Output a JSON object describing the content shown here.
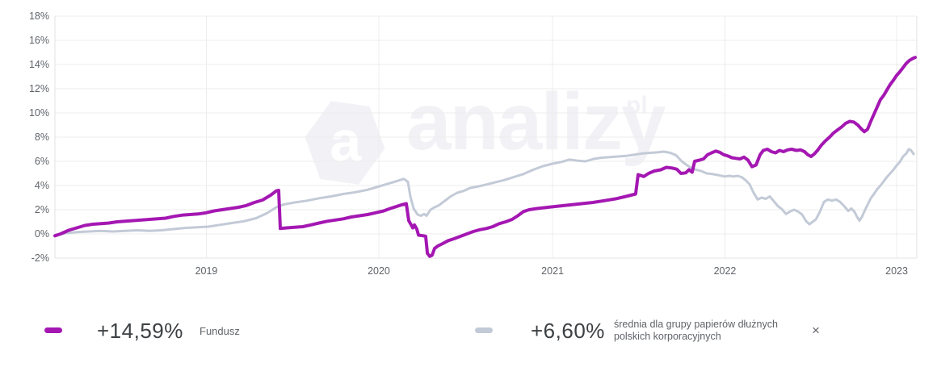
{
  "colors": {
    "fund": "#a417b2",
    "benchmark": "#c3cad7",
    "grid": "#ececec",
    "border": "#e3e3e6",
    "axis_text": "#5f6368",
    "value_text": "#3c4043",
    "watermark": "#f2f2f6"
  },
  "watermark": {
    "logo_letter": "a",
    "text": "analizy",
    "suffix": "pl"
  },
  "legend": {
    "fund": {
      "value": "+14,59%",
      "label": "Fundusz"
    },
    "benchmark": {
      "value": "+6,60%",
      "label": "średnia dla grupy papierów dłużnych polskich korporacyjnych"
    },
    "close_label": "×"
  },
  "chart_data": {
    "type": "line",
    "title": "",
    "x_axis": {
      "tick_labels": [
        "2019",
        "2020",
        "2021",
        "2022",
        "2023"
      ],
      "tick_positions": [
        0.1757,
        0.3758,
        0.5774,
        0.7774,
        0.9766
      ],
      "range_note": "time axis from ~Feb 2018 to ~Feb 2023, x stored as 0-1 fraction of plot width"
    },
    "y_axis": {
      "tick_labels": [
        "18%",
        "16%",
        "14%",
        "12%",
        "10%",
        "8%",
        "6%",
        "4%",
        "2%",
        "0%",
        "-2%"
      ],
      "tick_values": [
        18,
        16,
        14,
        12,
        10,
        8,
        6,
        4,
        2,
        0,
        -2
      ],
      "ylim": [
        -2,
        18
      ],
      "unit": "%"
    },
    "grid": true,
    "legend_position": "bottom",
    "series": [
      {
        "name": "średnia dla grupy papierów dłużnych polskich korporacyjnych",
        "color_key": "benchmark",
        "stroke_width": 3,
        "final_pct": 6.6,
        "points": [
          [
            0,
            -0.1
          ],
          [
            0.0112,
            0.05
          ],
          [
            0.0253,
            0.15
          ],
          [
            0.0394,
            0.2
          ],
          [
            0.0534,
            0.25
          ],
          [
            0.0675,
            0.2
          ],
          [
            0.0815,
            0.25
          ],
          [
            0.0956,
            0.3
          ],
          [
            0.1097,
            0.25
          ],
          [
            0.1237,
            0.3
          ],
          [
            0.1378,
            0.4
          ],
          [
            0.1518,
            0.5
          ],
          [
            0.1659,
            0.55
          ],
          [
            0.1781,
            0.6
          ],
          [
            0.1912,
            0.75
          ],
          [
            0.2053,
            0.9
          ],
          [
            0.2193,
            1.05
          ],
          [
            0.2334,
            1.3
          ],
          [
            0.2456,
            1.7
          ],
          [
            0.2568,
            2.2
          ],
          [
            0.2662,
            2.45
          ],
          [
            0.2783,
            2.6
          ],
          [
            0.2924,
            2.75
          ],
          [
            0.3065,
            2.95
          ],
          [
            0.3205,
            3.1
          ],
          [
            0.3346,
            3.3
          ],
          [
            0.3486,
            3.45
          ],
          [
            0.3627,
            3.65
          ],
          [
            0.3749,
            3.9
          ],
          [
            0.3842,
            4.1
          ],
          [
            0.3936,
            4.3
          ],
          [
            0.4002,
            4.45
          ],
          [
            0.4049,
            4.55
          ],
          [
            0.4096,
            4.3
          ],
          [
            0.4124,
            3.1
          ],
          [
            0.4161,
            2.1
          ],
          [
            0.4208,
            1.6
          ],
          [
            0.4246,
            1.5
          ],
          [
            0.4283,
            1.65
          ],
          [
            0.4311,
            1.5
          ],
          [
            0.4358,
            2
          ],
          [
            0.4405,
            2.2
          ],
          [
            0.4452,
            2.35
          ],
          [
            0.4517,
            2.7
          ],
          [
            0.4592,
            3.1
          ],
          [
            0.4667,
            3.4
          ],
          [
            0.4742,
            3.55
          ],
          [
            0.4817,
            3.8
          ],
          [
            0.4892,
            3.9
          ],
          [
            0.4986,
            4.05
          ],
          [
            0.5098,
            4.25
          ],
          [
            0.5211,
            4.45
          ],
          [
            0.5323,
            4.7
          ],
          [
            0.5436,
            4.95
          ],
          [
            0.5548,
            5.3
          ],
          [
            0.5661,
            5.6
          ],
          [
            0.5773,
            5.8
          ],
          [
            0.5876,
            5.95
          ],
          [
            0.597,
            6.15
          ],
          [
            0.6064,
            6.05
          ],
          [
            0.6157,
            6
          ],
          [
            0.6251,
            6.2
          ],
          [
            0.6345,
            6.3
          ],
          [
            0.6439,
            6.35
          ],
          [
            0.6532,
            6.4
          ],
          [
            0.6626,
            6.45
          ],
          [
            0.672,
            6.55
          ],
          [
            0.6813,
            6.65
          ],
          [
            0.6907,
            6.7
          ],
          [
            0.7001,
            6.75
          ],
          [
            0.7066,
            6.8
          ],
          [
            0.7141,
            6.7
          ],
          [
            0.7207,
            6.5
          ],
          [
            0.7273,
            6
          ],
          [
            0.7329,
            5.7
          ],
          [
            0.7385,
            5.45
          ],
          [
            0.7441,
            5.3
          ],
          [
            0.7498,
            5.2
          ],
          [
            0.7563,
            5
          ],
          [
            0.7629,
            4.95
          ],
          [
            0.7704,
            4.85
          ],
          [
            0.777,
            4.75
          ],
          [
            0.7826,
            4.8
          ],
          [
            0.7873,
            4.75
          ],
          [
            0.7919,
            4.8
          ],
          [
            0.7966,
            4.7
          ],
          [
            0.8013,
            4.45
          ],
          [
            0.806,
            4.1
          ],
          [
            0.8107,
            3.4
          ],
          [
            0.8154,
            2.85
          ],
          [
            0.82,
            3
          ],
          [
            0.8247,
            2.9
          ],
          [
            0.8294,
            3.1
          ],
          [
            0.8341,
            2.7
          ],
          [
            0.8388,
            2.3
          ],
          [
            0.8435,
            2.05
          ],
          [
            0.8482,
            1.65
          ],
          [
            0.8529,
            1.85
          ],
          [
            0.8576,
            2
          ],
          [
            0.8622,
            1.85
          ],
          [
            0.8669,
            1.6
          ],
          [
            0.8716,
            1.05
          ],
          [
            0.8754,
            0.8
          ],
          [
            0.8791,
            1
          ],
          [
            0.8829,
            1.2
          ],
          [
            0.8876,
            1.85
          ],
          [
            0.8923,
            2.65
          ],
          [
            0.8969,
            2.85
          ],
          [
            0.9016,
            2.75
          ],
          [
            0.9063,
            2.85
          ],
          [
            0.911,
            2.65
          ],
          [
            0.9157,
            2.3
          ],
          [
            0.9204,
            1.9
          ],
          [
            0.9241,
            2.1
          ],
          [
            0.9279,
            1.8
          ],
          [
            0.9307,
            1.4
          ],
          [
            0.9335,
            1.1
          ],
          [
            0.9363,
            1.4
          ],
          [
            0.9391,
            1.85
          ],
          [
            0.9428,
            2.4
          ],
          [
            0.9466,
            2.95
          ],
          [
            0.9503,
            3.3
          ],
          [
            0.9541,
            3.7
          ],
          [
            0.9578,
            4
          ],
          [
            0.9616,
            4.35
          ],
          [
            0.9653,
            4.7
          ],
          [
            0.9691,
            5
          ],
          [
            0.9728,
            5.3
          ],
          [
            0.9766,
            5.65
          ],
          [
            0.9803,
            5.95
          ],
          [
            0.9841,
            6.4
          ],
          [
            0.9878,
            6.65
          ],
          [
            0.9906,
            7
          ],
          [
            0.9934,
            6.9
          ],
          [
            0.9963,
            6.6
          ]
        ]
      },
      {
        "name": "Fundusz",
        "color_key": "fund",
        "stroke_width": 4,
        "final_pct": 14.59,
        "points": [
          [
            0,
            -0.15
          ],
          [
            0.0066,
            0
          ],
          [
            0.0159,
            0.3
          ],
          [
            0.0253,
            0.5
          ],
          [
            0.0347,
            0.7
          ],
          [
            0.044,
            0.8
          ],
          [
            0.0534,
            0.85
          ],
          [
            0.0628,
            0.9
          ],
          [
            0.0722,
            1
          ],
          [
            0.0815,
            1.05
          ],
          [
            0.0909,
            1.1
          ],
          [
            0.1003,
            1.15
          ],
          [
            0.1097,
            1.2
          ],
          [
            0.119,
            1.25
          ],
          [
            0.1284,
            1.3
          ],
          [
            0.1378,
            1.45
          ],
          [
            0.1471,
            1.55
          ],
          [
            0.1565,
            1.6
          ],
          [
            0.1659,
            1.65
          ],
          [
            0.1753,
            1.75
          ],
          [
            0.1846,
            1.9
          ],
          [
            0.194,
            2
          ],
          [
            0.2034,
            2.1
          ],
          [
            0.2128,
            2.2
          ],
          [
            0.2221,
            2.35
          ],
          [
            0.2315,
            2.6
          ],
          [
            0.2409,
            2.8
          ],
          [
            0.2502,
            3.2
          ],
          [
            0.2568,
            3.55
          ],
          [
            0.2596,
            3.6
          ],
          [
            0.2615,
            0.45
          ],
          [
            0.269,
            0.5
          ],
          [
            0.2783,
            0.55
          ],
          [
            0.2877,
            0.6
          ],
          [
            0.2971,
            0.75
          ],
          [
            0.3065,
            0.9
          ],
          [
            0.3158,
            1.05
          ],
          [
            0.3252,
            1.15
          ],
          [
            0.3346,
            1.25
          ],
          [
            0.344,
            1.4
          ],
          [
            0.3533,
            1.5
          ],
          [
            0.3627,
            1.6
          ],
          [
            0.3721,
            1.75
          ],
          [
            0.3814,
            1.9
          ],
          [
            0.3889,
            2.1
          ],
          [
            0.3955,
            2.25
          ],
          [
            0.4021,
            2.4
          ],
          [
            0.4077,
            2.5
          ],
          [
            0.4105,
            1.1
          ],
          [
            0.4133,
            0.75
          ],
          [
            0.4152,
            0.5
          ],
          [
            0.4171,
            0.75
          ],
          [
            0.4199,
            0.4
          ],
          [
            0.4218,
            -0.1
          ],
          [
            0.4274,
            -0.15
          ],
          [
            0.4302,
            -0.2
          ],
          [
            0.4321,
            -1.6
          ],
          [
            0.4349,
            -1.85
          ],
          [
            0.4377,
            -1.75
          ],
          [
            0.4405,
            -1.2
          ],
          [
            0.4442,
            -1
          ],
          [
            0.4499,
            -0.8
          ],
          [
            0.4564,
            -0.55
          ],
          [
            0.463,
            -0.4
          ],
          [
            0.4705,
            -0.2
          ],
          [
            0.478,
            0
          ],
          [
            0.4855,
            0.2
          ],
          [
            0.493,
            0.35
          ],
          [
            0.5005,
            0.45
          ],
          [
            0.508,
            0.6
          ],
          [
            0.5155,
            0.85
          ],
          [
            0.523,
            1
          ],
          [
            0.5305,
            1.2
          ],
          [
            0.537,
            1.5
          ],
          [
            0.5436,
            1.85
          ],
          [
            0.5501,
            2
          ],
          [
            0.5595,
            2.1
          ],
          [
            0.5717,
            2.2
          ],
          [
            0.5848,
            2.3
          ],
          [
            0.5979,
            2.4
          ],
          [
            0.611,
            2.5
          ],
          [
            0.6242,
            2.6
          ],
          [
            0.6373,
            2.75
          ],
          [
            0.6504,
            2.9
          ],
          [
            0.6626,
            3.1
          ],
          [
            0.6738,
            3.3
          ],
          [
            0.6767,
            4.9
          ],
          [
            0.6832,
            4.75
          ],
          [
            0.6888,
            5
          ],
          [
            0.6954,
            5.2
          ],
          [
            0.7029,
            5.3
          ],
          [
            0.7094,
            5.5
          ],
          [
            0.716,
            5.45
          ],
          [
            0.7216,
            5.35
          ],
          [
            0.7263,
            5
          ],
          [
            0.7319,
            5.05
          ],
          [
            0.7357,
            5.3
          ],
          [
            0.7394,
            5.1
          ],
          [
            0.7423,
            6
          ],
          [
            0.7479,
            6.1
          ],
          [
            0.7526,
            6.2
          ],
          [
            0.7573,
            6.55
          ],
          [
            0.7619,
            6.7
          ],
          [
            0.7666,
            6.85
          ],
          [
            0.7713,
            6.75
          ],
          [
            0.776,
            6.55
          ],
          [
            0.7807,
            6.45
          ],
          [
            0.7854,
            6.3
          ],
          [
            0.7901,
            6.25
          ],
          [
            0.7948,
            6.2
          ],
          [
            0.7995,
            6.35
          ],
          [
            0.8041,
            6.1
          ],
          [
            0.8088,
            5.55
          ],
          [
            0.8135,
            5.7
          ],
          [
            0.8182,
            6.55
          ],
          [
            0.8219,
            6.9
          ],
          [
            0.8266,
            7
          ],
          [
            0.8313,
            6.8
          ],
          [
            0.836,
            6.7
          ],
          [
            0.8407,
            6.9
          ],
          [
            0.8454,
            6.8
          ],
          [
            0.8501,
            6.95
          ],
          [
            0.8548,
            7
          ],
          [
            0.8604,
            6.9
          ],
          [
            0.8651,
            6.95
          ],
          [
            0.8697,
            6.8
          ],
          [
            0.8735,
            6.55
          ],
          [
            0.8772,
            6.4
          ],
          [
            0.881,
            6.6
          ],
          [
            0.8847,
            6.9
          ],
          [
            0.8894,
            7.35
          ],
          [
            0.8941,
            7.7
          ],
          [
            0.8988,
            8
          ],
          [
            0.9035,
            8.35
          ],
          [
            0.9082,
            8.6
          ],
          [
            0.9128,
            8.85
          ],
          [
            0.9175,
            9.15
          ],
          [
            0.9222,
            9.3
          ],
          [
            0.9269,
            9.25
          ],
          [
            0.9316,
            9
          ],
          [
            0.9353,
            8.7
          ],
          [
            0.9391,
            8.45
          ],
          [
            0.9428,
            8.65
          ],
          [
            0.9466,
            9.3
          ],
          [
            0.9503,
            9.9
          ],
          [
            0.9541,
            10.5
          ],
          [
            0.9578,
            11.1
          ],
          [
            0.9616,
            11.45
          ],
          [
            0.9653,
            11.9
          ],
          [
            0.9691,
            12.35
          ],
          [
            0.9728,
            12.7
          ],
          [
            0.9766,
            13.1
          ],
          [
            0.9803,
            13.4
          ],
          [
            0.9841,
            13.75
          ],
          [
            0.9878,
            14.1
          ],
          [
            0.9916,
            14.35
          ],
          [
            0.9953,
            14.5
          ],
          [
            0.9981,
            14.59
          ]
        ]
      }
    ]
  }
}
